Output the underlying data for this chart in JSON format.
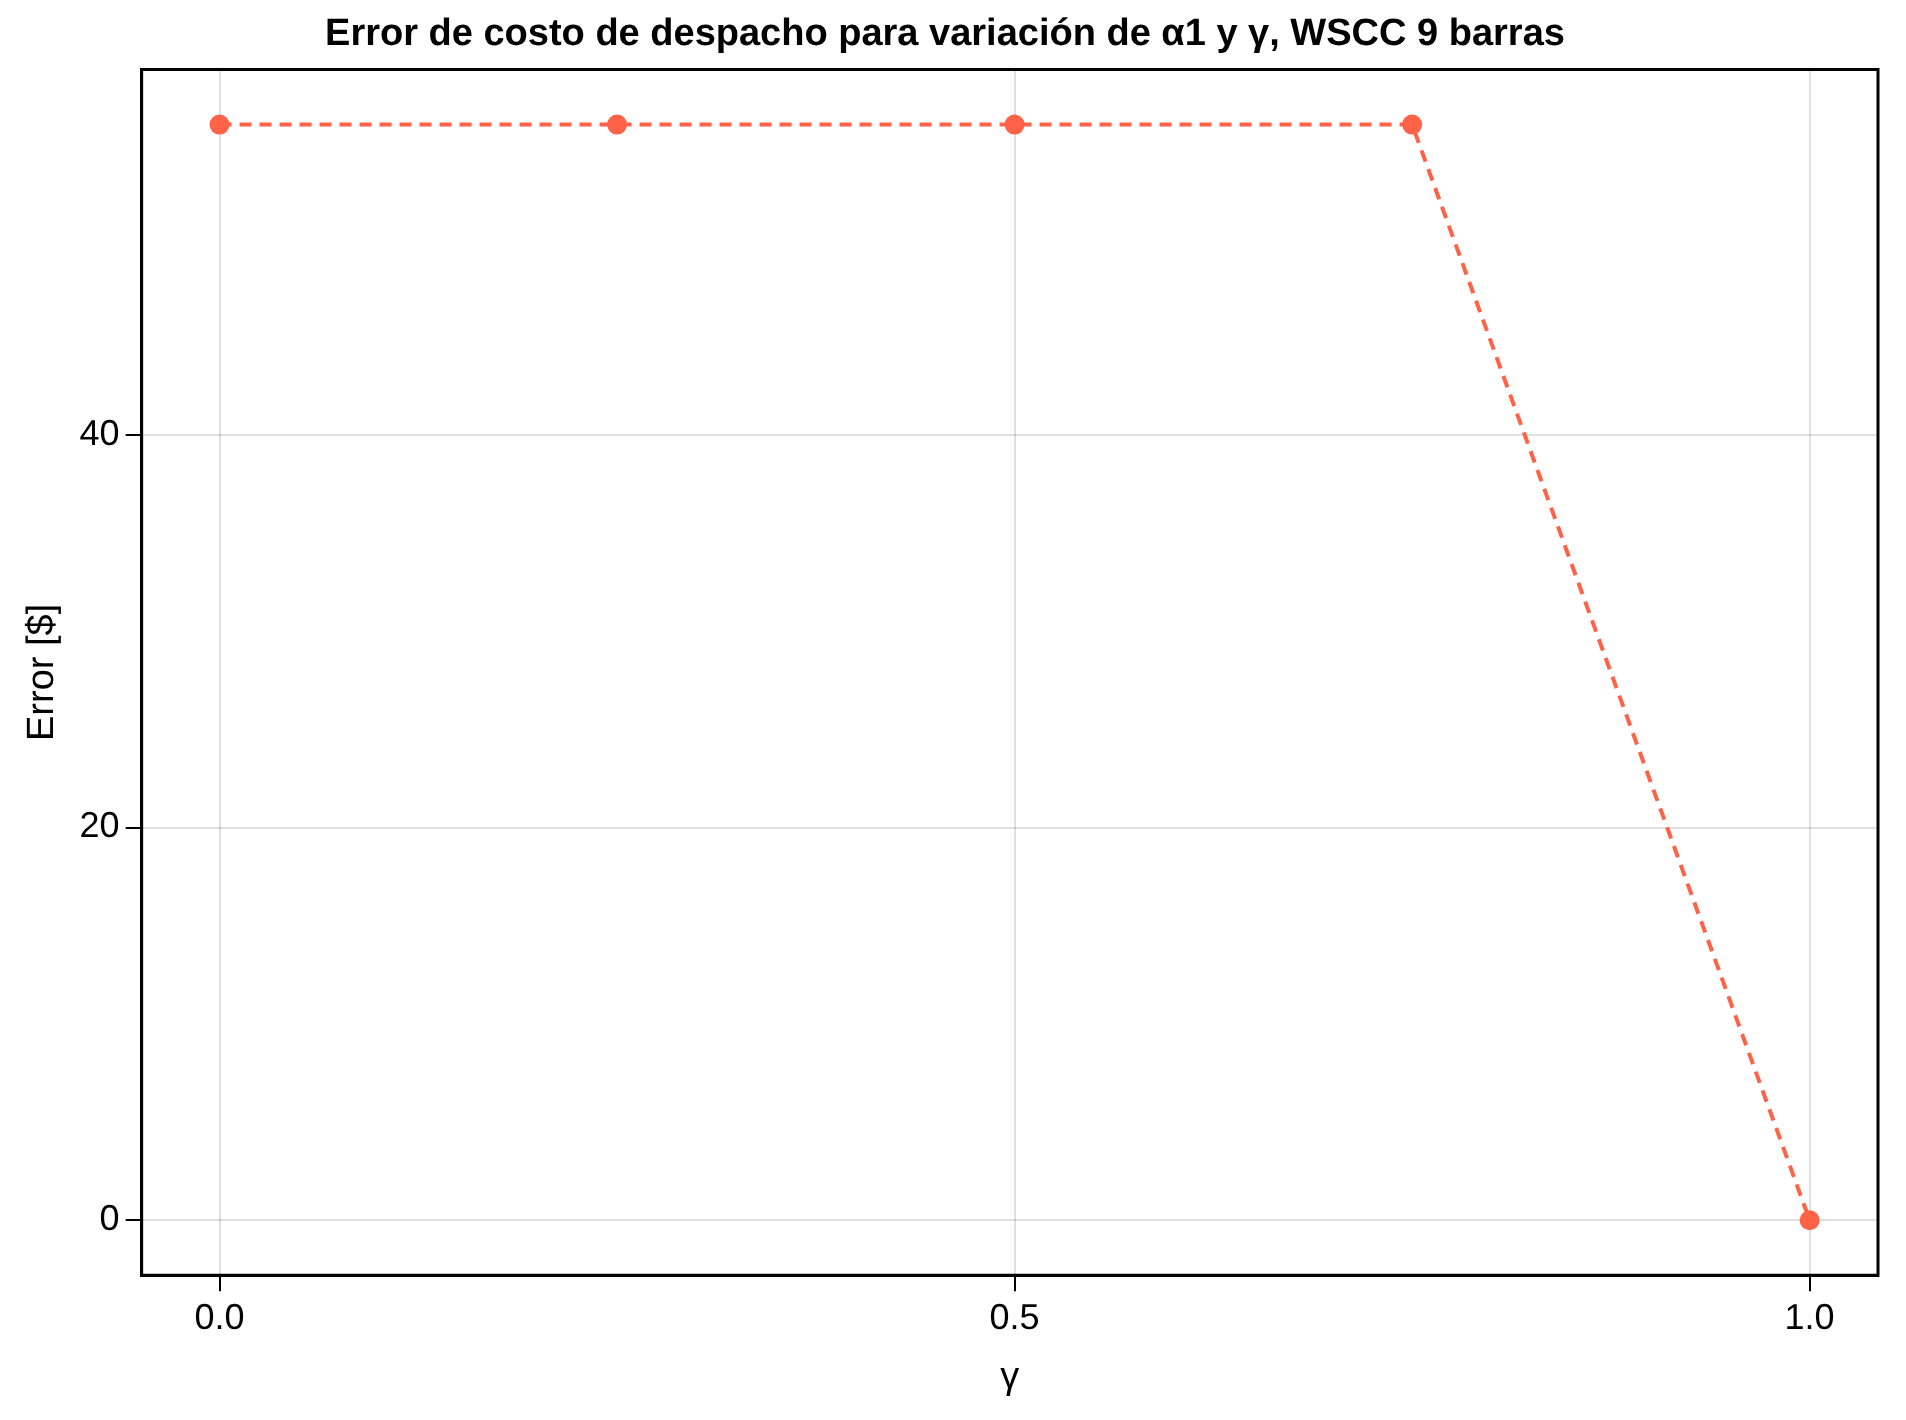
{
  "chart_data": {
    "type": "line",
    "title": "Error de costo de despacho para variación de α1 y γ, WSCC 9 barras",
    "xlabel": "γ",
    "ylabel": "Error [$]",
    "x": [
      0,
      0.25,
      0.5,
      0.75,
      1
    ],
    "series": [
      {
        "color": "#ff6347",
        "values": [
          55.8,
          55.8,
          55.8,
          55.8,
          0
        ]
      }
    ],
    "xlim": [
      -0.049,
      1.043
    ],
    "ylim": [
      -2.8,
      58.6
    ],
    "xticks": [
      {
        "value": 0,
        "label": "0.0"
      },
      {
        "value": 0.5,
        "label": "0.5"
      },
      {
        "value": 1,
        "label": "1.0"
      }
    ],
    "yticks": [
      0,
      20,
      40
    ],
    "grid": true,
    "legend": false,
    "marker": "circle",
    "line_style": "dashed"
  }
}
